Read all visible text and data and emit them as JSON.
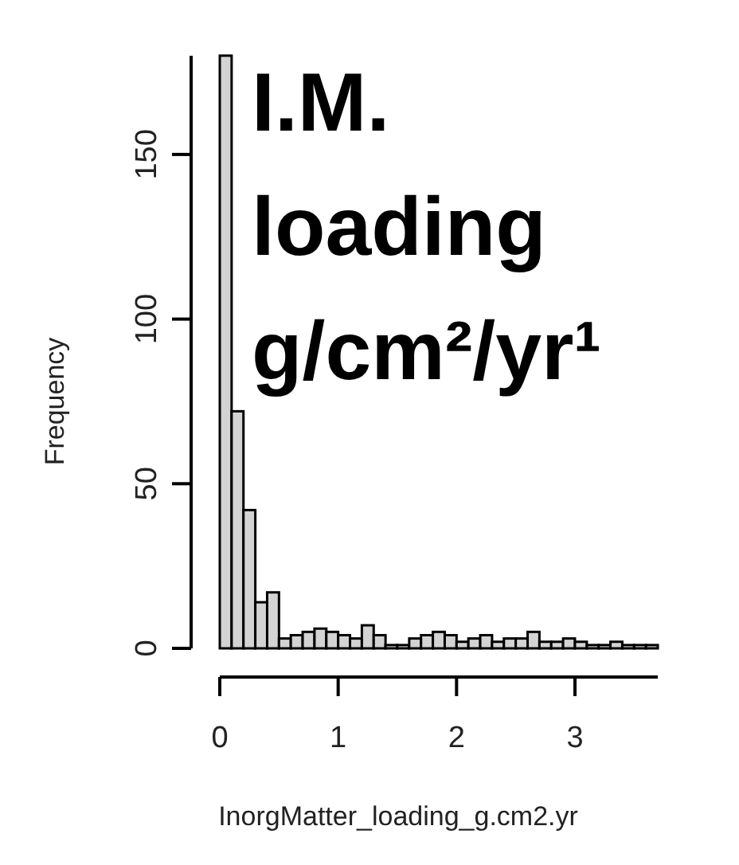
{
  "chart_data": {
    "type": "histogram",
    "title": "I.M. loading g/cm²/yr¹",
    "xlabel": "InorgMatter_loading_g.cm2.yr",
    "ylabel": "Frequency",
    "bins": [
      0,
      0.1,
      0.2,
      0.3,
      0.4,
      0.5,
      0.6,
      0.7,
      0.8,
      0.9,
      1,
      1.1,
      1.2,
      1.3,
      1.4,
      1.5,
      1.6,
      1.7,
      1.8,
      1.9,
      2,
      2.1,
      2.2,
      2.3,
      2.4,
      2.5,
      2.6,
      2.7,
      2.8,
      2.9,
      3,
      3.1,
      3.2,
      3.3,
      3.4,
      3.5,
      3.6,
      3.7
    ],
    "values": [
      180,
      72,
      42,
      14,
      17,
      3,
      4,
      5,
      6,
      5,
      4,
      3,
      7,
      4,
      1,
      1,
      3,
      4,
      5,
      4,
      2,
      3,
      4,
      2,
      3,
      3,
      5,
      2,
      2,
      3,
      2,
      1,
      1,
      2,
      1,
      1,
      1
    ],
    "color": "#d3d3d3",
    "xlim": [
      0,
      3.7
    ],
    "xticks": [
      0,
      1,
      2,
      3
    ],
    "ylim": [
      0,
      180
    ],
    "yticks": [
      0,
      50,
      100,
      150
    ],
    "grid": false
  }
}
